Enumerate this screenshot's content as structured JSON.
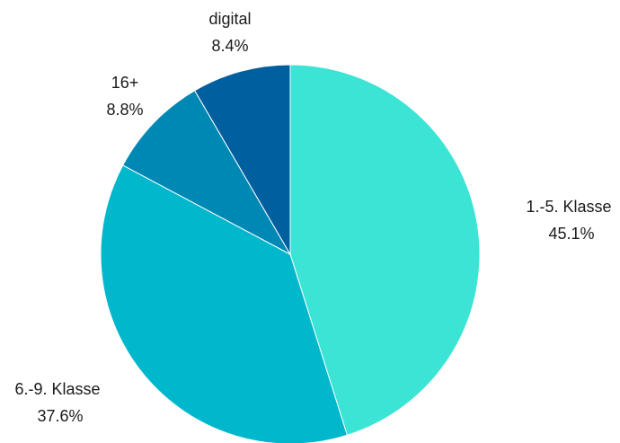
{
  "chart_data": {
    "type": "pie",
    "title": "",
    "slices": [
      {
        "label": "1.-5. Klasse",
        "value": 45.1,
        "value_label": "45.1%",
        "color": "#3ce4d6"
      },
      {
        "label": "6.-9. Klasse",
        "value": 37.6,
        "value_label": "37.6%",
        "color": "#00b7cc"
      },
      {
        "label": "16+",
        "value": 8.8,
        "value_label": "8.8%",
        "color": "#0088b5"
      },
      {
        "label": "digital",
        "value": 8.4,
        "value_label": "8.4%",
        "color": "#005f9e"
      }
    ],
    "start_angle": "12 o'clock",
    "direction": "clockwise",
    "legend": "none"
  }
}
